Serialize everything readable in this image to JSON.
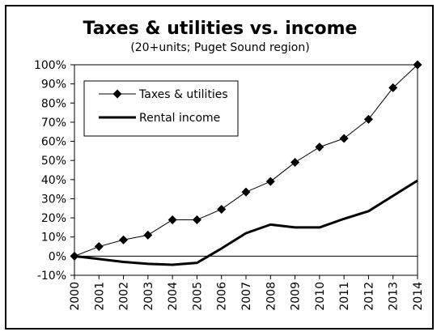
{
  "chart_data": {
    "type": "line",
    "title": "Taxes & utilities vs. income",
    "subtitle": "(20+units; Puget Sound region)",
    "xlabel": "",
    "ylabel": "",
    "x": [
      "2000",
      "2001",
      "2002",
      "2003",
      "2004",
      "2005",
      "2006",
      "2007",
      "2008",
      "2009",
      "2010",
      "2011",
      "2012",
      "2013",
      "2014"
    ],
    "ylim": [
      -10,
      100
    ],
    "yticks": [
      -10,
      0,
      10,
      20,
      30,
      40,
      50,
      60,
      70,
      80,
      90,
      100
    ],
    "ytick_labels": [
      "-10%",
      "0%",
      "10%",
      "20%",
      "30%",
      "40%",
      "50%",
      "60%",
      "70%",
      "80%",
      "90%",
      "100%"
    ],
    "grid": false,
    "legend_position": "top-left",
    "series": [
      {
        "name": "Taxes & utilities",
        "marker": "diamond",
        "line": "thin",
        "values": [
          0,
          5,
          8.5,
          11,
          19,
          19,
          24.5,
          33.5,
          39,
          49,
          57,
          61.5,
          71.5,
          88,
          100
        ]
      },
      {
        "name": "Rental income",
        "marker": "none",
        "line": "thick",
        "values": [
          0,
          -1.5,
          -3,
          -4,
          -4.5,
          -3.5,
          4,
          12,
          16.5,
          15,
          15,
          19.5,
          23.5,
          31.5,
          39.5
        ]
      }
    ]
  }
}
